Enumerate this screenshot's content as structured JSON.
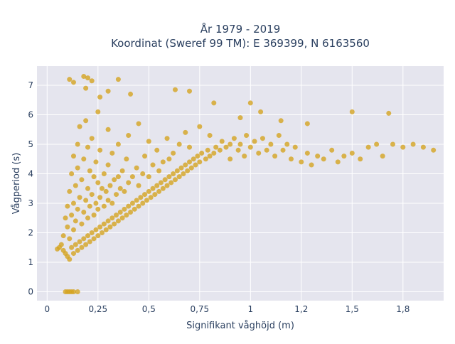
{
  "chart_data": {
    "type": "scatter",
    "title_line1": "År 1979 - 2019",
    "title_line2": "Koordinat (Sweref 99 TM): E 369399, N 6163560",
    "xlabel": "Signifikant våghöjd (m)",
    "ylabel": "Vågperiod (s)",
    "xlim": [
      -0.05,
      1.95
    ],
    "ylim": [
      -0.3,
      7.65
    ],
    "xticks": [
      {
        "value": 0,
        "label": "0"
      },
      {
        "value": 0.25,
        "label": "0,25"
      },
      {
        "value": 0.5,
        "label": "0,5"
      },
      {
        "value": 0.75,
        "label": "0,75"
      },
      {
        "value": 1.0,
        "label": "1"
      },
      {
        "value": 1.25,
        "label": "1,2"
      },
      {
        "value": 1.5,
        "label": "1,5"
      },
      {
        "value": 1.75,
        "label": "1,8"
      }
    ],
    "yticks": [
      {
        "value": 0,
        "label": "0"
      },
      {
        "value": 1,
        "label": "1"
      },
      {
        "value": 2,
        "label": "2"
      },
      {
        "value": 3,
        "label": "3"
      },
      {
        "value": 4,
        "label": "4"
      },
      {
        "value": 5,
        "label": "5"
      },
      {
        "value": 6,
        "label": "6"
      },
      {
        "value": 7,
        "label": "7"
      }
    ],
    "grid": true,
    "marker_color": "#d4a421",
    "plot_bg": "#e5e5ee",
    "points": [
      [
        0.05,
        1.45
      ],
      [
        0.06,
        1.5
      ],
      [
        0.07,
        1.6
      ],
      [
        0.08,
        1.4
      ],
      [
        0.08,
        1.9
      ],
      [
        0.09,
        1.3
      ],
      [
        0.09,
        2.5
      ],
      [
        0.1,
        1.2
      ],
      [
        0.1,
        2.2
      ],
      [
        0.1,
        2.9
      ],
      [
        0.11,
        1.1
      ],
      [
        0.11,
        1.8
      ],
      [
        0.11,
        3.4
      ],
      [
        0.12,
        1.5
      ],
      [
        0.12,
        2.6
      ],
      [
        0.12,
        4.0
      ],
      [
        0.13,
        1.3
      ],
      [
        0.13,
        2.1
      ],
      [
        0.13,
        3.0
      ],
      [
        0.13,
        4.6
      ],
      [
        0.14,
        1.6
      ],
      [
        0.14,
        2.4
      ],
      [
        0.14,
        3.6
      ],
      [
        0.15,
        1.4
      ],
      [
        0.15,
        2.8
      ],
      [
        0.15,
        4.2
      ],
      [
        0.15,
        5.0
      ],
      [
        0.16,
        1.7
      ],
      [
        0.16,
        3.2
      ],
      [
        0.16,
        5.6
      ],
      [
        0.17,
        1.5
      ],
      [
        0.17,
        2.3
      ],
      [
        0.17,
        3.8
      ],
      [
        0.18,
        1.8
      ],
      [
        0.18,
        2.7
      ],
      [
        0.18,
        4.5
      ],
      [
        0.19,
        1.6
      ],
      [
        0.19,
        3.1
      ],
      [
        0.19,
        5.8
      ],
      [
        0.2,
        1.9
      ],
      [
        0.2,
        2.5
      ],
      [
        0.2,
        3.5
      ],
      [
        0.2,
        4.9
      ],
      [
        0.21,
        1.7
      ],
      [
        0.21,
        2.9
      ],
      [
        0.21,
        4.1
      ],
      [
        0.22,
        2.0
      ],
      [
        0.22,
        3.3
      ],
      [
        0.22,
        5.2
      ],
      [
        0.23,
        1.8
      ],
      [
        0.23,
        2.6
      ],
      [
        0.23,
        3.9
      ],
      [
        0.24,
        2.1
      ],
      [
        0.24,
        3.0
      ],
      [
        0.24,
        4.4
      ],
      [
        0.25,
        1.9
      ],
      [
        0.25,
        2.8
      ],
      [
        0.25,
        3.7
      ],
      [
        0.25,
        6.1
      ],
      [
        0.26,
        2.2
      ],
      [
        0.26,
        3.2
      ],
      [
        0.26,
        4.8
      ],
      [
        0.27,
        2.0
      ],
      [
        0.27,
        3.5
      ],
      [
        0.28,
        2.3
      ],
      [
        0.28,
        2.9
      ],
      [
        0.28,
        4.0
      ],
      [
        0.29,
        2.1
      ],
      [
        0.29,
        3.4
      ],
      [
        0.3,
        2.4
      ],
      [
        0.3,
        3.1
      ],
      [
        0.3,
        4.3
      ],
      [
        0.3,
        5.5
      ],
      [
        0.31,
        2.2
      ],
      [
        0.31,
        3.6
      ],
      [
        0.32,
        2.5
      ],
      [
        0.32,
        3.0
      ],
      [
        0.32,
        4.7
      ],
      [
        0.33,
        2.3
      ],
      [
        0.33,
        3.8
      ],
      [
        0.34,
        2.6
      ],
      [
        0.34,
        3.3
      ],
      [
        0.35,
        2.4
      ],
      [
        0.35,
        3.9
      ],
      [
        0.35,
        5.0
      ],
      [
        0.36,
        2.7
      ],
      [
        0.36,
        3.5
      ],
      [
        0.37,
        2.5
      ],
      [
        0.37,
        4.1
      ],
      [
        0.38,
        2.8
      ],
      [
        0.38,
        3.4
      ],
      [
        0.39,
        2.6
      ],
      [
        0.39,
        4.5
      ],
      [
        0.4,
        2.9
      ],
      [
        0.4,
        3.7
      ],
      [
        0.4,
        5.3
      ],
      [
        0.41,
        2.7
      ],
      [
        0.42,
        3.0
      ],
      [
        0.42,
        3.9
      ],
      [
        0.43,
        2.8
      ],
      [
        0.44,
        3.1
      ],
      [
        0.44,
        4.2
      ],
      [
        0.45,
        2.9
      ],
      [
        0.45,
        3.6
      ],
      [
        0.45,
        5.7
      ],
      [
        0.46,
        3.2
      ],
      [
        0.47,
        3.0
      ],
      [
        0.47,
        4.0
      ],
      [
        0.48,
        3.3
      ],
      [
        0.48,
        4.6
      ],
      [
        0.49,
        3.1
      ],
      [
        0.5,
        3.4
      ],
      [
        0.5,
        3.9
      ],
      [
        0.5,
        5.1
      ],
      [
        0.51,
        3.2
      ],
      [
        0.52,
        3.5
      ],
      [
        0.52,
        4.3
      ],
      [
        0.53,
        3.3
      ],
      [
        0.54,
        3.6
      ],
      [
        0.54,
        4.8
      ],
      [
        0.55,
        3.4
      ],
      [
        0.55,
        4.1
      ],
      [
        0.56,
        3.7
      ],
      [
        0.57,
        3.5
      ],
      [
        0.57,
        4.4
      ],
      [
        0.58,
        3.8
      ],
      [
        0.59,
        3.6
      ],
      [
        0.59,
        5.2
      ],
      [
        0.6,
        3.9
      ],
      [
        0.6,
        4.5
      ],
      [
        0.61,
        3.7
      ],
      [
        0.62,
        4.0
      ],
      [
        0.62,
        4.7
      ],
      [
        0.63,
        3.8
      ],
      [
        0.64,
        4.1
      ],
      [
        0.65,
        3.9
      ],
      [
        0.65,
        5.0
      ],
      [
        0.66,
        4.2
      ],
      [
        0.67,
        4.0
      ],
      [
        0.68,
        4.3
      ],
      [
        0.68,
        5.4
      ],
      [
        0.69,
        4.1
      ],
      [
        0.7,
        4.4
      ],
      [
        0.7,
        4.9
      ],
      [
        0.71,
        4.2
      ],
      [
        0.72,
        4.5
      ],
      [
        0.73,
        4.3
      ],
      [
        0.74,
        4.6
      ],
      [
        0.75,
        4.4
      ],
      [
        0.75,
        5.6
      ],
      [
        0.76,
        4.7
      ],
      [
        0.78,
        4.5
      ],
      [
        0.79,
        4.8
      ],
      [
        0.8,
        4.6
      ],
      [
        0.8,
        5.3
      ],
      [
        0.82,
        4.7
      ],
      [
        0.83,
        4.9
      ],
      [
        0.85,
        4.8
      ],
      [
        0.86,
        5.1
      ],
      [
        0.88,
        4.9
      ],
      [
        0.9,
        5.0
      ],
      [
        0.9,
        4.5
      ],
      [
        0.92,
        5.2
      ],
      [
        0.94,
        4.8
      ],
      [
        0.95,
        5.0
      ],
      [
        0.97,
        4.6
      ],
      [
        0.98,
        5.3
      ],
      [
        1.0,
        4.9
      ],
      [
        1.02,
        5.1
      ],
      [
        1.04,
        4.7
      ],
      [
        1.06,
        5.2
      ],
      [
        1.08,
        4.8
      ],
      [
        1.1,
        5.0
      ],
      [
        1.12,
        4.6
      ],
      [
        1.14,
        5.3
      ],
      [
        1.16,
        4.8
      ],
      [
        1.18,
        5.0
      ],
      [
        1.2,
        4.5
      ],
      [
        1.22,
        4.9
      ],
      [
        1.25,
        4.4
      ],
      [
        1.28,
        4.7
      ],
      [
        1.3,
        4.3
      ],
      [
        1.33,
        4.6
      ],
      [
        1.36,
        4.5
      ],
      [
        1.4,
        4.8
      ],
      [
        1.43,
        4.4
      ],
      [
        1.46,
        4.6
      ],
      [
        1.5,
        4.7
      ],
      [
        1.54,
        4.5
      ],
      [
        1.58,
        4.9
      ],
      [
        1.62,
        5.0
      ],
      [
        1.65,
        4.6
      ],
      [
        1.7,
        5.0
      ],
      [
        1.75,
        4.9
      ],
      [
        1.8,
        5.0
      ],
      [
        1.85,
        4.9
      ],
      [
        1.9,
        4.8
      ],
      [
        0.09,
        0.0
      ],
      [
        0.1,
        0.0
      ],
      [
        0.11,
        0.0
      ],
      [
        0.12,
        0.0
      ],
      [
        0.13,
        0.0
      ],
      [
        0.15,
        0.0
      ],
      [
        0.11,
        7.2
      ],
      [
        0.13,
        7.1
      ],
      [
        0.18,
        7.3
      ],
      [
        0.2,
        7.25
      ],
      [
        0.22,
        7.15
      ],
      [
        0.19,
        6.9
      ],
      [
        0.35,
        7.2
      ],
      [
        0.26,
        6.6
      ],
      [
        0.3,
        6.8
      ],
      [
        0.41,
        6.7
      ],
      [
        0.63,
        6.85
      ],
      [
        0.7,
        6.8
      ],
      [
        0.82,
        6.4
      ],
      [
        1.0,
        6.4
      ],
      [
        1.05,
        6.1
      ],
      [
        1.5,
        6.1
      ],
      [
        1.68,
        6.05
      ],
      [
        0.95,
        5.9
      ],
      [
        1.15,
        5.8
      ],
      [
        1.28,
        5.7
      ]
    ]
  }
}
